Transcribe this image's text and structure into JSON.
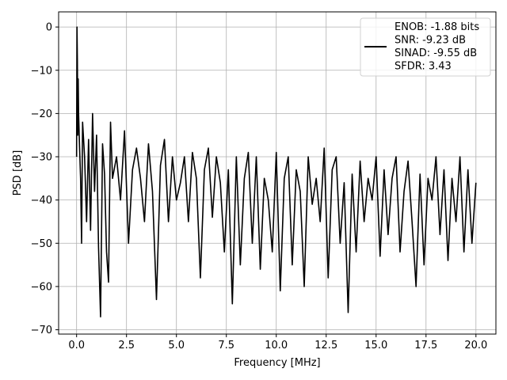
{
  "chart_data": {
    "type": "line",
    "xlabel": "Frequency [MHz]",
    "ylabel": "PSD [dB]",
    "xlim": [
      -0.9,
      21.0
    ],
    "ylim": [
      -71,
      3.5
    ],
    "xticks": [
      0.0,
      2.5,
      5.0,
      7.5,
      10.0,
      12.5,
      15.0,
      17.5,
      20.0
    ],
    "xtick_labels": [
      "0.0",
      "2.5",
      "5.0",
      "7.5",
      "10.0",
      "12.5",
      "15.0",
      "17.5",
      "20.0"
    ],
    "yticks": [
      0,
      -10,
      -20,
      -30,
      -40,
      -50,
      -60,
      -70
    ],
    "ytick_labels": [
      "0",
      "−10",
      "−20",
      "−30",
      "−40",
      "−50",
      "−60",
      "−70"
    ],
    "grid": true,
    "legend_position": "top-right",
    "legend_entries": [
      "ENOB: -1.88 bits",
      "SNR: -9.23 dB",
      "SINAD: -9.55 dB",
      "SFDR: 3.43"
    ],
    "series_color": "#000000",
    "series": [
      {
        "x": [
          0.0,
          0.02,
          0.04,
          0.06,
          0.08,
          0.1,
          0.15,
          0.2,
          0.25,
          0.3,
          0.4,
          0.5,
          0.6,
          0.7,
          0.8,
          0.9,
          1.0,
          1.1,
          1.2,
          1.3,
          1.4,
          1.5,
          1.6,
          1.7,
          1.8,
          2.0,
          2.2,
          2.4,
          2.6,
          2.8,
          3.0,
          3.2,
          3.4,
          3.6,
          3.8,
          4.0,
          4.2,
          4.4,
          4.6,
          4.8,
          5.0,
          5.2,
          5.4,
          5.6,
          5.8,
          6.0,
          6.2,
          6.4,
          6.6,
          6.8,
          7.0,
          7.2,
          7.4,
          7.6,
          7.8,
          8.0,
          8.2,
          8.4,
          8.6,
          8.8,
          9.0,
          9.2,
          9.4,
          9.6,
          9.8,
          10.0,
          10.2,
          10.4,
          10.6,
          10.8,
          11.0,
          11.2,
          11.4,
          11.6,
          11.8,
          12.0,
          12.2,
          12.4,
          12.6,
          12.8,
          13.0,
          13.2,
          13.4,
          13.6,
          13.8,
          14.0,
          14.2,
          14.4,
          14.6,
          14.8,
          15.0,
          15.2,
          15.4,
          15.6,
          15.8,
          16.0,
          16.2,
          16.4,
          16.6,
          16.8,
          17.0,
          17.2,
          17.4,
          17.6,
          17.8,
          18.0,
          18.2,
          18.4,
          18.6,
          18.8,
          19.0,
          19.2,
          19.4,
          19.6,
          19.8,
          20.0
        ],
        "y": [
          -30,
          0,
          -8,
          -25,
          -12,
          -20,
          -28,
          -35,
          -50,
          -22,
          -30,
          -45,
          -26,
          -47,
          -20,
          -38,
          -25,
          -51,
          -67,
          -27,
          -34,
          -52,
          -59,
          -22,
          -35,
          -30,
          -40,
          -24,
          -50,
          -33,
          -28,
          -35,
          -45,
          -27,
          -38,
          -63,
          -32,
          -26,
          -45,
          -30,
          -40,
          -36,
          -30,
          -45,
          -29,
          -35,
          -58,
          -33,
          -28,
          -44,
          -30,
          -36,
          -52,
          -33,
          -64,
          -30,
          -55,
          -35,
          -29,
          -50,
          -30,
          -56,
          -35,
          -40,
          -52,
          -29,
          -61,
          -35,
          -30,
          -55,
          -33,
          -38,
          -60,
          -30,
          -41,
          -35,
          -45,
          -28,
          -58,
          -33,
          -30,
          -50,
          -36,
          -66,
          -34,
          -52,
          -31,
          -45,
          -35,
          -40,
          -30,
          -53,
          -33,
          -48,
          -35,
          -30,
          -52,
          -38,
          -31,
          -45,
          -60,
          -34,
          -55,
          -35,
          -40,
          -30,
          -48,
          -33,
          -54,
          -35,
          -45,
          -30,
          -52,
          -33,
          -50,
          -36
        ]
      }
    ]
  }
}
